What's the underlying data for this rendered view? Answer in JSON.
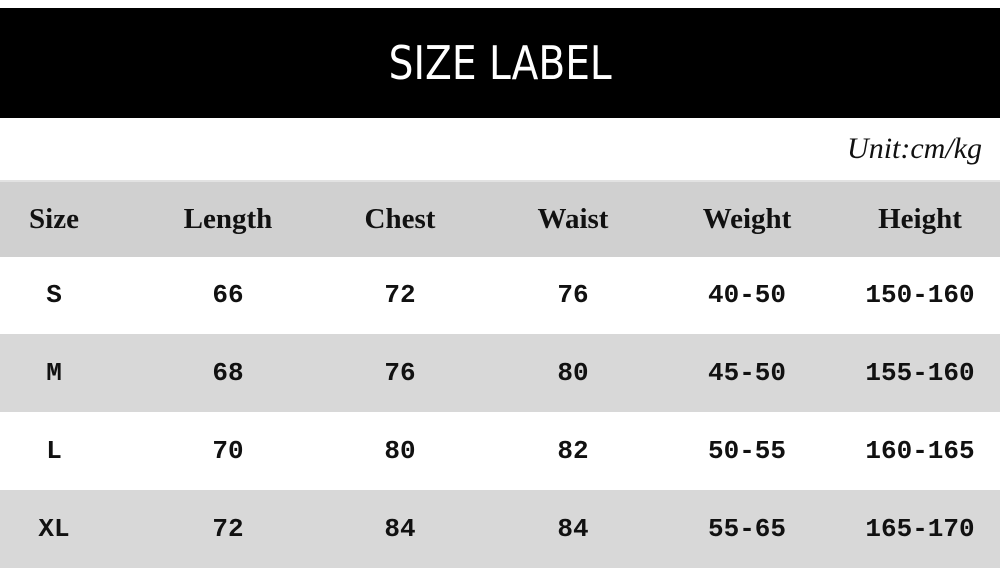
{
  "title": "SIZE LABEL",
  "unit": "Unit:cm/kg",
  "table": {
    "headers": [
      "Size",
      "Length",
      "Chest",
      "Waist",
      "Weight",
      "Height"
    ],
    "rows": [
      [
        "S",
        "66",
        "72",
        "76",
        "40-50",
        "150-160"
      ],
      [
        "M",
        "68",
        "76",
        "80",
        "45-50",
        "155-160"
      ],
      [
        "L",
        "70",
        "80",
        "82",
        "50-55",
        "160-165"
      ],
      [
        "XL",
        "72",
        "84",
        "84",
        "55-65",
        "165-170"
      ]
    ]
  },
  "colors": {
    "banner": "#000000",
    "header_row": "#d0d0d0",
    "alt_row": "#d8d8d8"
  }
}
